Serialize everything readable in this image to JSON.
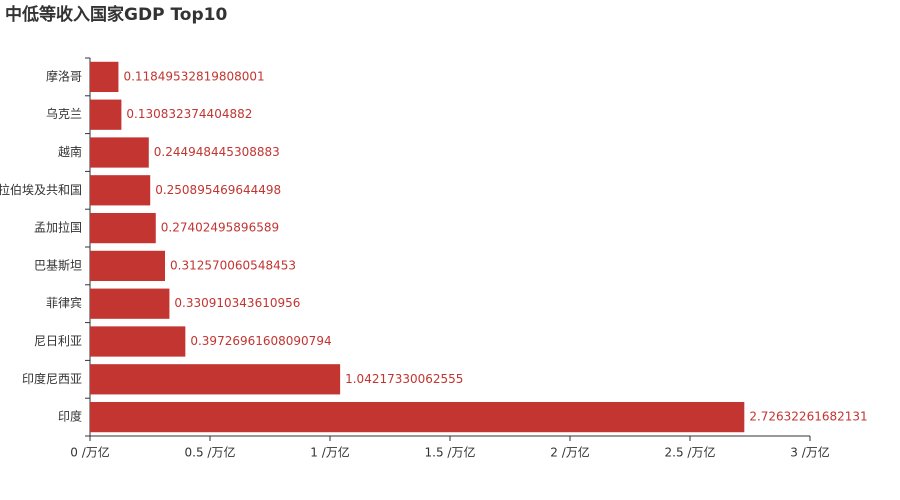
{
  "chart_data": {
    "type": "bar",
    "orientation": "horizontal",
    "title": "中低等收入国家GDP Top10",
    "categories": [
      "印度",
      "印度尼西亚",
      "尼日利亚",
      "菲律宾",
      "巴基斯坦",
      "孟加拉国",
      "阿拉伯埃及共和国",
      "越南",
      "乌克兰",
      "摩洛哥"
    ],
    "values": [
      2.72632261682131,
      1.04217330062555,
      0.39726961608090794,
      0.330910343610956,
      0.312570060548453,
      0.27402495896589,
      0.250895469644498,
      0.244948445308883,
      0.130832374404882,
      0.11849532819808001
    ],
    "color": "#c23531",
    "xlim": [
      0,
      3
    ],
    "xticks": [
      {
        "value": 0,
        "label": "0 /万亿"
      },
      {
        "value": 0.5,
        "label": "0.5 /万亿"
      },
      {
        "value": 1,
        "label": "1 /万亿"
      },
      {
        "value": 1.5,
        "label": "1.5 /万亿"
      },
      {
        "value": 2,
        "label": "2 /万亿"
      },
      {
        "value": 2.5,
        "label": "2.5 /万亿"
      },
      {
        "value": 3,
        "label": "3 /万亿"
      }
    ]
  }
}
